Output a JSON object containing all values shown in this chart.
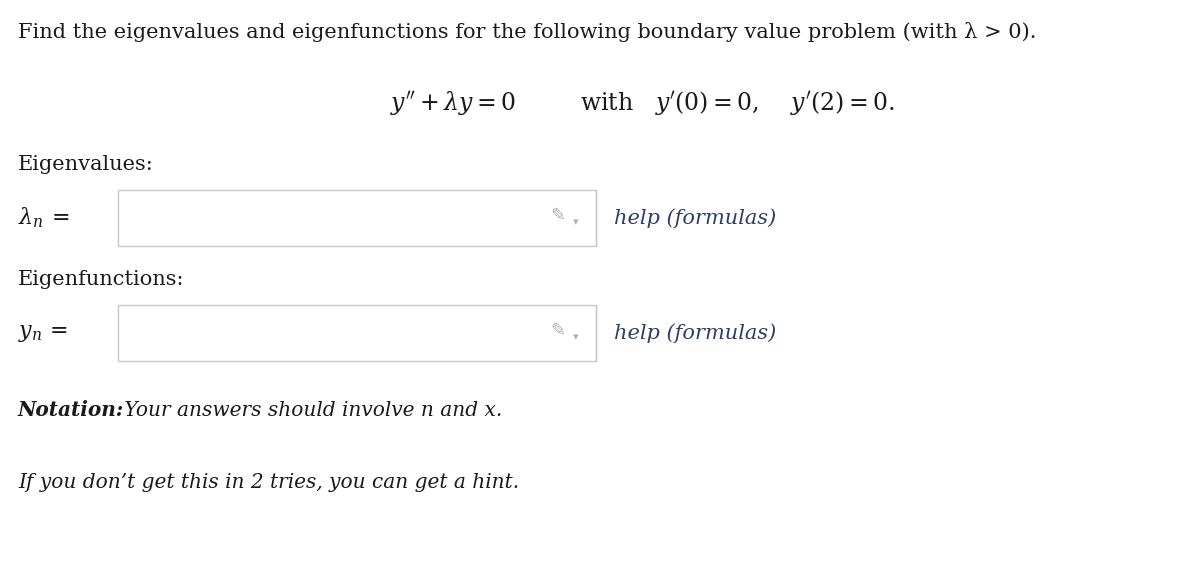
{
  "background_color": "#ffffff",
  "title_text": "Find the eigenvalues and eigenfunctions for the following boundary value problem (with λ > 0).",
  "label_eigenvalues": "Eigenvalues:",
  "label_eigenfunctions": "Eigenfunctions:",
  "help_text": "help (formulas)",
  "notation_bold": "Notation:",
  "notation_rest": " Your answers should involve n and x.",
  "hint_text": "If you don’t get this in 2 tries, you can get a hint.",
  "text_color": "#1a1a1a",
  "help_color": "#2c3e6b",
  "box_edge_color": "#c8c8c8",
  "pencil_color": "#b0b0b0",
  "title_fontsize": 15,
  "eq_fontsize": 17,
  "label_fontsize": 15,
  "symbol_fontsize": 16,
  "help_fontsize": 15,
  "notation_fontsize": 14.5,
  "hint_fontsize": 14.5
}
